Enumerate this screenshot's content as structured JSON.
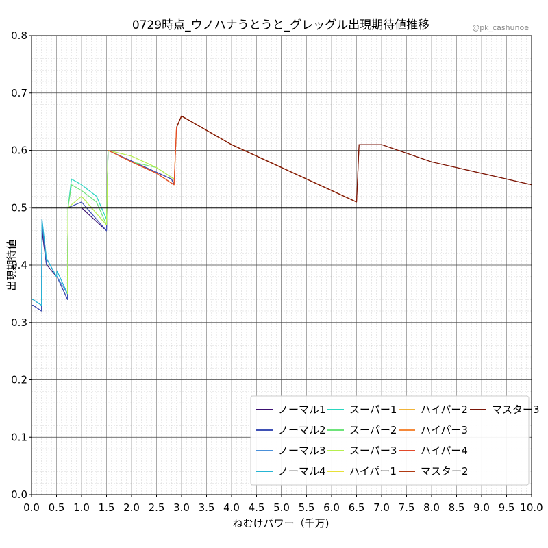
{
  "chart_data": {
    "type": "line",
    "title": "0729時点_ウノハナうとうと_グレッグル出現期待値推移",
    "credit": "@pk_cashunoe",
    "xlabel": "ねむけパワー（千万)",
    "ylabel": "出現期待値",
    "xlim": [
      0.0,
      10.0
    ],
    "ylim": [
      0.0,
      0.8
    ],
    "x_ticks": [
      "0.0",
      "0.5",
      "1.0",
      "1.5",
      "2.0",
      "2.5",
      "3.0",
      "3.5",
      "4.0",
      "4.5",
      "5.0",
      "5.5",
      "6.0",
      "6.5",
      "7.0",
      "7.5",
      "8.0",
      "8.5",
      "9.0",
      "9.5",
      "10.0"
    ],
    "y_ticks": [
      "0.0",
      "0.1",
      "0.2",
      "0.3",
      "0.4",
      "0.5",
      "0.6",
      "0.7",
      "0.8"
    ],
    "reference_line_y": 0.5,
    "grid": true,
    "legend_position": "lower-right",
    "series": [
      {
        "name": "ノーマル1",
        "color": "#3b0f70",
        "x": [
          0.0,
          0.03,
          0.2,
          0.21,
          0.3,
          0.31,
          0.5,
          0.51,
          0.72,
          0.73,
          1.0,
          1.5,
          1.53,
          2.8,
          2.85
        ],
        "y": [
          0.33,
          0.33,
          0.32,
          0.46,
          0.4,
          0.4,
          0.38,
          0.38,
          0.34,
          0.5,
          0.5,
          0.46,
          0.6,
          0.55,
          0.54
        ]
      },
      {
        "name": "ノーマル2",
        "color": "#3f51b5",
        "x": [
          0.0,
          0.03,
          0.2,
          0.21,
          0.3,
          0.31,
          0.5,
          0.51,
          0.72,
          0.73,
          1.0,
          1.5,
          1.53,
          2.8,
          2.85
        ],
        "y": [
          0.33,
          0.33,
          0.32,
          0.47,
          0.4,
          0.41,
          0.38,
          0.38,
          0.34,
          0.5,
          0.51,
          0.46,
          0.6,
          0.55,
          0.54
        ]
      },
      {
        "name": "ノーマル3",
        "color": "#4a90d9",
        "x": [
          0.0,
          0.03,
          0.2,
          0.21,
          0.3,
          0.31,
          0.5,
          0.51,
          0.72,
          0.73
        ],
        "y": [
          0.34,
          0.34,
          0.33,
          0.48,
          0.41,
          0.41,
          0.38,
          0.38,
          0.35,
          0.5
        ]
      },
      {
        "name": "ノーマル4",
        "color": "#26b5d4",
        "x": [
          0.0,
          0.03,
          0.2,
          0.21,
          0.3,
          0.31,
          0.5,
          0.51,
          0.72,
          0.73
        ],
        "y": [
          0.34,
          0.34,
          0.33,
          0.48,
          0.41,
          0.41,
          0.38,
          0.39,
          0.35,
          0.5
        ]
      },
      {
        "name": "スーパー1",
        "color": "#2ad6c0",
        "x": [
          0.72,
          0.73,
          0.8,
          1.0,
          1.3,
          1.5,
          1.53
        ],
        "y": [
          0.35,
          0.5,
          0.55,
          0.54,
          0.52,
          0.48,
          0.6
        ]
      },
      {
        "name": "スーパー2",
        "color": "#6ee37a",
        "x": [
          0.72,
          0.73,
          0.8,
          1.0,
          1.3,
          1.5,
          1.53,
          2.0,
          2.5,
          2.85
        ],
        "y": [
          0.35,
          0.5,
          0.54,
          0.53,
          0.51,
          0.47,
          0.6,
          0.58,
          0.57,
          0.55
        ]
      },
      {
        "name": "スーパー3",
        "color": "#b6ef4e",
        "x": [
          0.72,
          0.73,
          1.0,
          1.5,
          1.53,
          2.0,
          2.5,
          2.85
        ],
        "y": [
          0.35,
          0.5,
          0.52,
          0.47,
          0.6,
          0.59,
          0.57,
          0.55
        ]
      },
      {
        "name": "ハイパー1",
        "color": "#e8e038",
        "x": [
          1.53,
          2.0,
          2.5,
          2.85,
          2.9,
          3.0,
          4.0,
          5.0,
          6.0,
          6.5
        ],
        "y": [
          0.6,
          0.58,
          0.56,
          0.54,
          0.64,
          0.66,
          0.61,
          0.57,
          0.53,
          0.51
        ]
      },
      {
        "name": "ハイパー2",
        "color": "#f0b43a",
        "x": [
          1.53,
          2.0,
          2.5,
          2.85,
          2.9,
          3.0,
          4.0,
          5.0,
          6.0,
          6.5
        ],
        "y": [
          0.6,
          0.58,
          0.56,
          0.54,
          0.64,
          0.66,
          0.61,
          0.57,
          0.53,
          0.51
        ]
      },
      {
        "name": "ハイパー3",
        "color": "#f5893a",
        "x": [
          1.53,
          2.0,
          2.5,
          2.85,
          2.9,
          3.0,
          4.0,
          5.0,
          6.0,
          6.5
        ],
        "y": [
          0.6,
          0.58,
          0.56,
          0.54,
          0.64,
          0.66,
          0.61,
          0.57,
          0.53,
          0.51
        ]
      },
      {
        "name": "ハイパー4",
        "color": "#e2492a",
        "x": [
          1.53,
          2.0,
          2.5,
          2.85,
          2.9,
          3.0,
          4.0,
          5.0,
          6.0,
          6.5
        ],
        "y": [
          0.6,
          0.58,
          0.56,
          0.54,
          0.64,
          0.66,
          0.61,
          0.57,
          0.53,
          0.51
        ]
      },
      {
        "name": "マスター2",
        "color": "#b03a12",
        "x": [
          2.9,
          3.0,
          4.0,
          5.0,
          6.0,
          6.5,
          6.55,
          7.0,
          8.0,
          9.0,
          10.0
        ],
        "y": [
          0.64,
          0.66,
          0.61,
          0.57,
          0.53,
          0.51,
          0.61,
          0.61,
          0.58,
          0.56,
          0.54
        ]
      },
      {
        "name": "マスター3",
        "color": "#7a1608",
        "x": [
          2.9,
          3.0,
          4.0,
          5.0,
          6.0,
          6.5,
          6.55,
          7.0,
          8.0,
          9.0,
          10.0
        ],
        "y": [
          0.64,
          0.66,
          0.61,
          0.57,
          0.53,
          0.51,
          0.61,
          0.61,
          0.58,
          0.56,
          0.54
        ]
      }
    ]
  }
}
